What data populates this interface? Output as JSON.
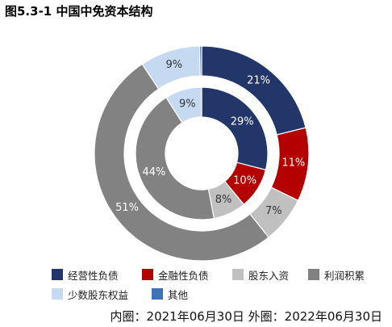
{
  "title": "图5.3-1 中国中免资本结构",
  "footnote": "内圈：2021年06月30日 外圈：2022年06月30日",
  "colors": {
    "经营性负债": "#233669",
    "金融性负债": "#b50000",
    "股东入资": "#c0c0c0",
    "利润积累": "#828282",
    "少数股东权益": "#c5daf1",
    "其他": "#3f72b7"
  },
  "legend": [
    "经营性负债",
    "金融性负债",
    "股东入资",
    "利润积累",
    "少数股东权益",
    "其他"
  ],
  "chart_data": {
    "type": "donut",
    "categories": [
      "经营性负债",
      "金融性负债",
      "股东入资",
      "利润积累",
      "少数股东权益",
      "其他"
    ],
    "series": [
      {
        "name": "内圈",
        "values": [
          29,
          10,
          8,
          44,
          9,
          0
        ],
        "labels": [
          "29%",
          "10%",
          "8%",
          "44%",
          "9%",
          ""
        ]
      },
      {
        "name": "外圈",
        "values": [
          21,
          11,
          7,
          51,
          9,
          0.3
        ],
        "labels": [
          "21%",
          "11%",
          "7%",
          "51%",
          "9%",
          ""
        ]
      }
    ]
  }
}
